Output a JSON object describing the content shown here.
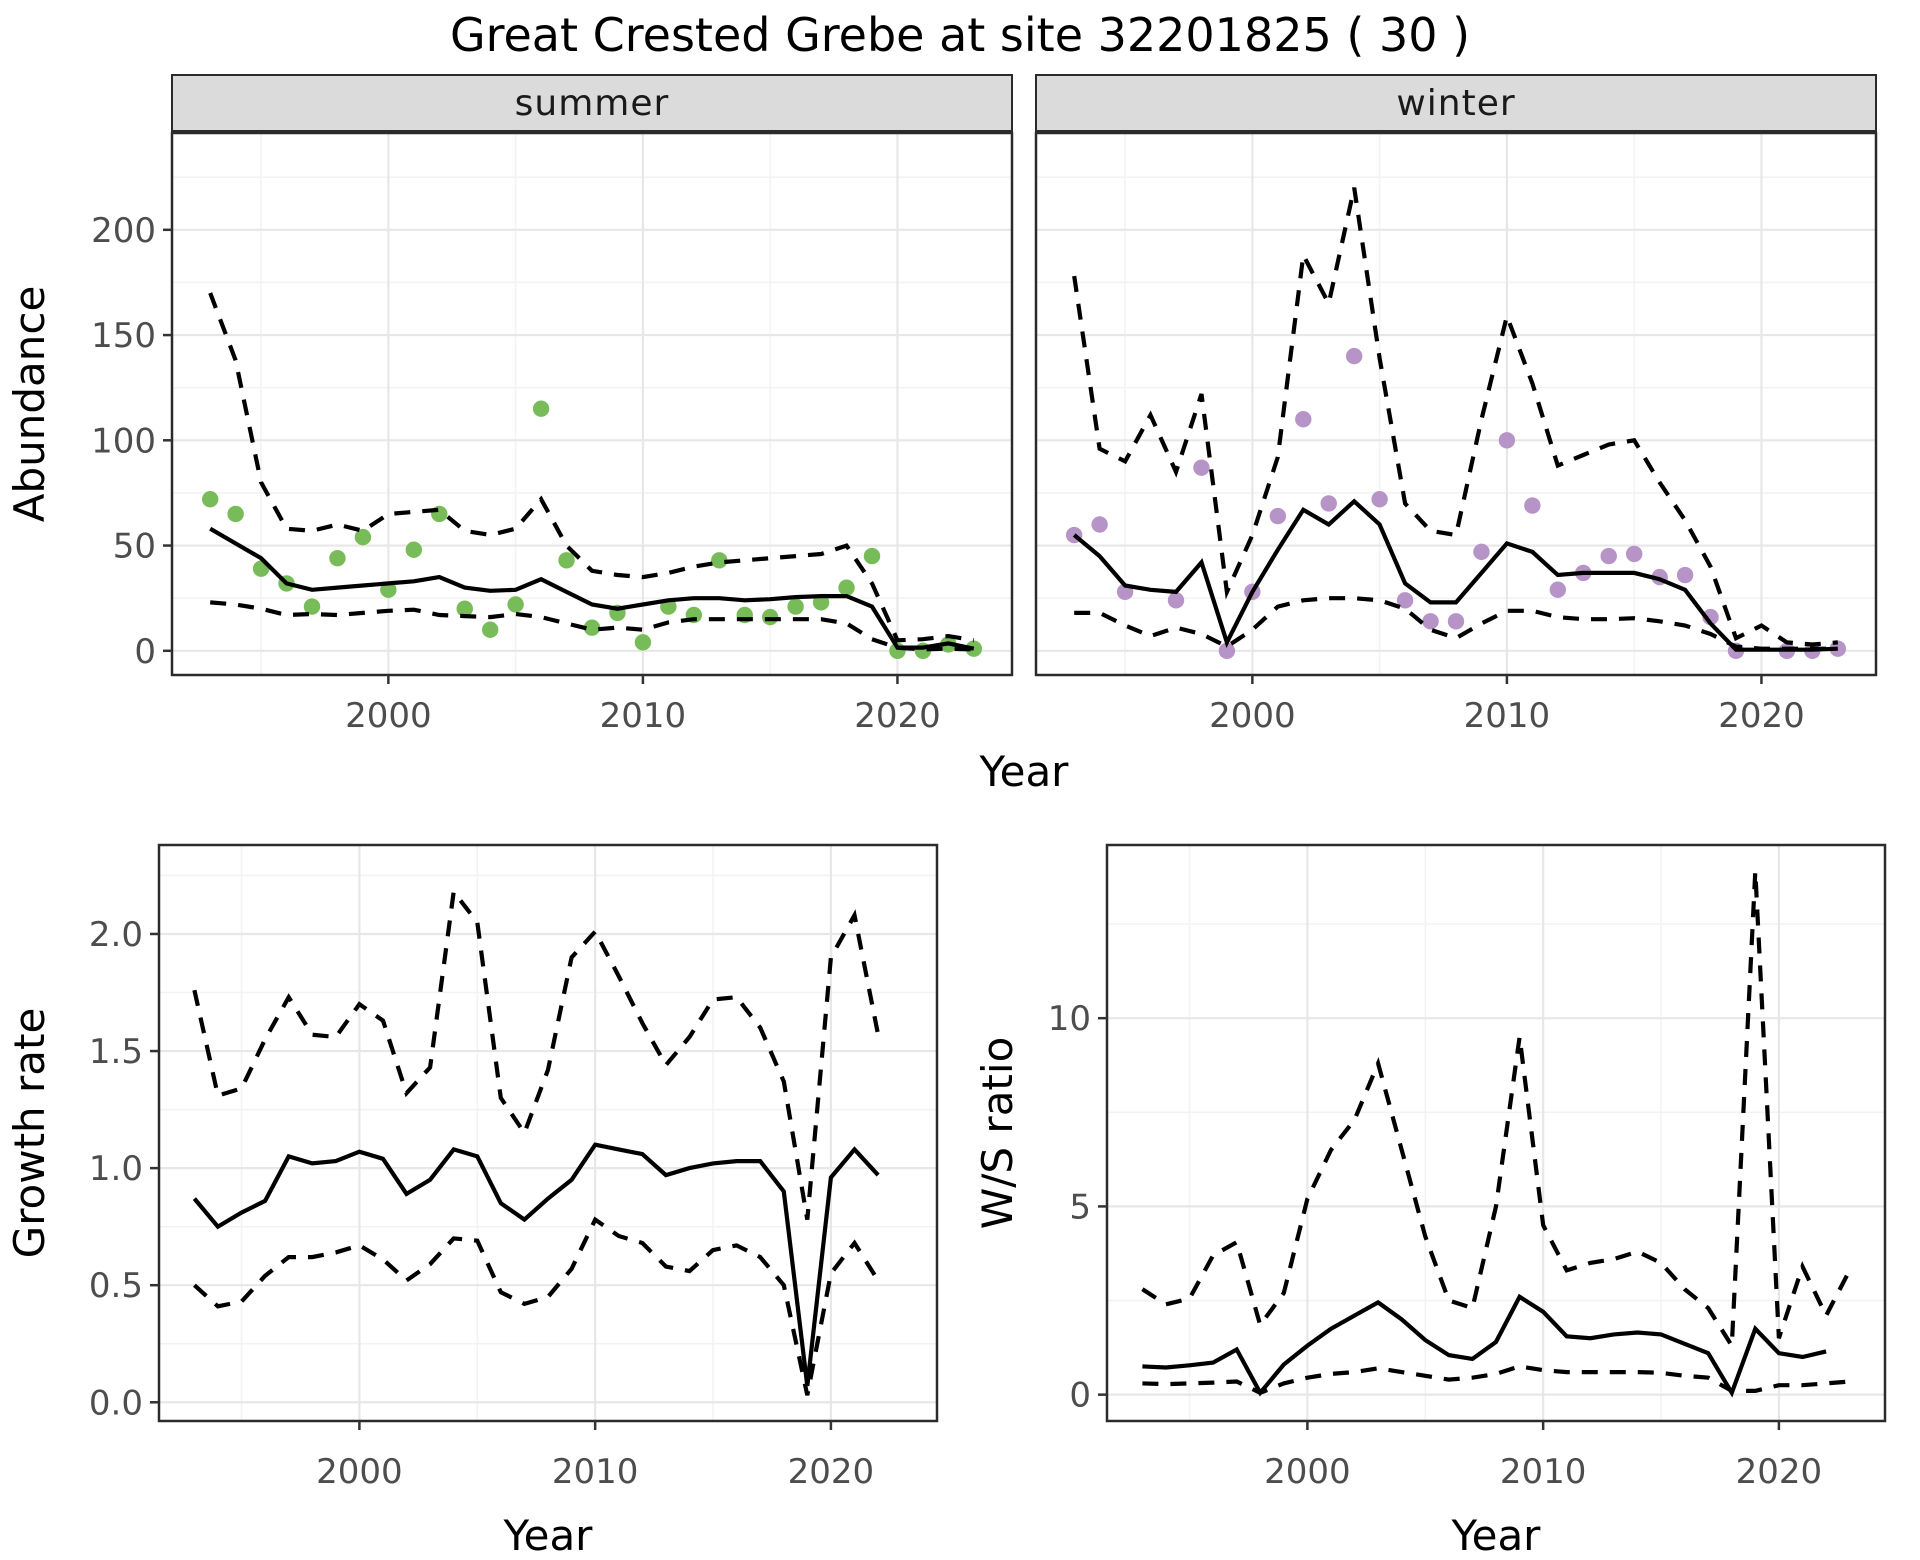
{
  "title": "Great Crested Grebe at site 32201825 ( 30 )",
  "colors": {
    "summer_points": "#78BC5A",
    "winter_points": "#B794C7",
    "line": "#000000",
    "grid_major": "#E7E7E7",
    "grid_minor": "#F3F3F3",
    "strip_bg": "#DBDBDB",
    "panel_border": "#2B2B2B",
    "tick_text": "#4D4D4D"
  },
  "facets": {
    "summer": "summer",
    "winter": "winter"
  },
  "axis_titles": {
    "abundance": "Abundance",
    "year": "Year",
    "growth_rate": "Growth rate",
    "ws_ratio": "W/S ratio"
  },
  "chart_data": [
    {
      "id": "summer",
      "type": "line",
      "title": "summer",
      "xlabel": "Year",
      "ylabel": "Abundance",
      "xlim": [
        1991.5,
        2024.5
      ],
      "ylim": [
        -11.5,
        246
      ],
      "x_ticks": [
        [
          2000,
          "2000"
        ],
        [
          2010,
          "2010"
        ],
        [
          2020,
          "2020"
        ]
      ],
      "x_minor": [
        1995,
        2005,
        2015
      ],
      "y_ticks": [
        [
          0,
          "0"
        ],
        [
          50,
          "50"
        ],
        [
          100,
          "100"
        ],
        [
          150,
          "150"
        ],
        [
          200,
          "200"
        ]
      ],
      "y_minor": [
        25,
        75,
        125,
        175,
        225
      ],
      "grid": true,
      "legend_position": "none",
      "x": [
        1993,
        1994,
        1995,
        1996,
        1997,
        1998,
        1999,
        2000,
        2001,
        2002,
        2003,
        2004,
        2005,
        2006,
        2007,
        2008,
        2009,
        2010,
        2011,
        2012,
        2013,
        2014,
        2015,
        2016,
        2017,
        2018,
        2019,
        2020,
        2021,
        2022,
        2023
      ],
      "series": [
        {
          "name": "observed_counts",
          "style": "points",
          "values": [
            72,
            65,
            39,
            32,
            21,
            44,
            54,
            29,
            48,
            65,
            20,
            10,
            22,
            115,
            43,
            11,
            18,
            4,
            21,
            17,
            43,
            17,
            16,
            21,
            23,
            30,
            45,
            0,
            0,
            3,
            1
          ]
        },
        {
          "name": "model_fit",
          "style": "solid",
          "values": [
            58,
            51,
            44,
            32,
            29,
            30,
            31,
            32,
            33,
            35,
            30,
            28.5,
            29,
            34,
            28,
            22,
            20,
            22,
            24,
            25,
            25,
            24,
            24.5,
            25.5,
            26,
            26,
            21,
            1.5,
            1.5,
            3.5,
            1
          ]
        },
        {
          "name": "upper_ci",
          "style": "dashed",
          "values": [
            170,
            138,
            80,
            58,
            57,
            60,
            57,
            65,
            66,
            67,
            57,
            55,
            58,
            72,
            50,
            38,
            36,
            35,
            37,
            40,
            42,
            43,
            44,
            45,
            46,
            50,
            32,
            5,
            5.5,
            7,
            5
          ]
        },
        {
          "name": "lower_ci",
          "style": "dashed",
          "values": [
            23,
            22,
            20,
            17,
            17.5,
            17,
            18,
            19,
            19.5,
            17,
            16.5,
            16,
            17.5,
            16,
            13,
            10,
            11,
            10,
            13.5,
            15,
            15,
            15,
            15,
            15,
            15,
            13,
            5.5,
            1.4,
            0.7,
            1,
            0.7
          ]
        }
      ]
    },
    {
      "id": "winter",
      "type": "line",
      "title": "winter",
      "xlabel": "Year",
      "ylabel": "Abundance",
      "xlim": [
        1991.5,
        2024.5
      ],
      "ylim": [
        -11.5,
        246
      ],
      "x_ticks": [
        [
          2000,
          "2000"
        ],
        [
          2010,
          "2010"
        ],
        [
          2020,
          "2020"
        ]
      ],
      "x_minor": [
        1995,
        2005,
        2015
      ],
      "y_ticks": [
        [
          0,
          "0"
        ],
        [
          50,
          "50"
        ],
        [
          100,
          "100"
        ],
        [
          150,
          "150"
        ],
        [
          200,
          "200"
        ]
      ],
      "y_minor": [
        25,
        75,
        125,
        175,
        225
      ],
      "grid": true,
      "legend_position": "none",
      "x": [
        1993,
        1994,
        1995,
        1996,
        1997,
        1998,
        1999,
        2000,
        2001,
        2002,
        2003,
        2004,
        2005,
        2006,
        2007,
        2008,
        2009,
        2010,
        2011,
        2012,
        2013,
        2014,
        2015,
        2016,
        2017,
        2018,
        2019,
        2020,
        2021,
        2022,
        2023
      ],
      "series": [
        {
          "name": "observed_counts",
          "style": "points",
          "values": [
            55,
            60,
            28,
            null,
            24,
            87,
            0,
            28,
            64,
            110,
            70,
            140,
            72,
            24,
            14,
            14,
            47,
            100,
            69,
            29,
            37,
            45,
            46,
            35,
            36,
            16,
            0,
            null,
            0,
            0,
            1
          ]
        },
        {
          "name": "model_fit",
          "style": "solid",
          "values": [
            55,
            45,
            31,
            29,
            28,
            42,
            4,
            28,
            48,
            67,
            60,
            71,
            60,
            32,
            23,
            23,
            37,
            51,
            47,
            36,
            37,
            37,
            37,
            34,
            29,
            13,
            0.5,
            0.5,
            0.5,
            0.5,
            1
          ]
        },
        {
          "name": "upper_ci",
          "style": "dashed",
          "values": [
            178,
            96,
            90,
            112,
            85,
            122,
            28,
            55,
            92,
            188,
            165,
            220,
            139,
            70,
            57,
            55,
            110,
            159,
            127,
            88,
            93,
            98,
            100,
            80,
            62,
            40,
            6,
            12,
            4,
            3,
            4
          ]
        },
        {
          "name": "lower_ci",
          "style": "dashed",
          "values": [
            18,
            18,
            12,
            7,
            11,
            8,
            2,
            10,
            21,
            24,
            25,
            25,
            24,
            20,
            10,
            6,
            13,
            19,
            19,
            16,
            15,
            15,
            15.5,
            14,
            12,
            8,
            2,
            1,
            1,
            1,
            1
          ]
        }
      ]
    },
    {
      "id": "growth_rate",
      "type": "line",
      "title": "",
      "xlabel": "Year",
      "ylabel": "Growth rate",
      "xlim": [
        1991.5,
        2024.5
      ],
      "ylim": [
        -0.08,
        2.38
      ],
      "x_ticks": [
        [
          2000,
          "2000"
        ],
        [
          2010,
          "2010"
        ],
        [
          2020,
          "2020"
        ]
      ],
      "x_minor": [
        1995,
        2005,
        2015
      ],
      "y_ticks": [
        [
          0,
          "0.0"
        ],
        [
          0.5,
          "0.5"
        ],
        [
          1,
          "1.0"
        ],
        [
          1.5,
          "1.5"
        ],
        [
          2,
          "2.0"
        ]
      ],
      "y_minor": [
        0.25,
        0.75,
        1.25,
        1.75,
        2.25
      ],
      "grid": true,
      "legend_position": "none",
      "x": [
        1993,
        1994,
        1995,
        1996,
        1997,
        1998,
        1999,
        2000,
        2001,
        2002,
        2003,
        2004,
        2005,
        2006,
        2007,
        2008,
        2009,
        2010,
        2011,
        2012,
        2013,
        2014,
        2015,
        2016,
        2017,
        2018,
        2019,
        2020,
        2021,
        2022
      ],
      "series": [
        {
          "name": "growth_rate_fit",
          "style": "solid",
          "values": [
            0.87,
            0.75,
            0.81,
            0.86,
            1.05,
            1.02,
            1.03,
            1.07,
            1.04,
            0.89,
            0.95,
            1.08,
            1.05,
            0.85,
            0.78,
            0.87,
            0.95,
            1.1,
            1.08,
            1.06,
            0.97,
            1.0,
            1.02,
            1.03,
            1.03,
            0.9,
            0.07,
            0.96,
            1.08,
            0.97
          ]
        },
        {
          "name": "upper_ci",
          "style": "dashed",
          "values": [
            1.76,
            1.31,
            1.34,
            1.55,
            1.73,
            1.57,
            1.56,
            1.7,
            1.63,
            1.32,
            1.43,
            2.18,
            2.05,
            1.3,
            1.15,
            1.42,
            1.9,
            2.01,
            1.82,
            1.62,
            1.44,
            1.56,
            1.72,
            1.73,
            1.6,
            1.37,
            0.78,
            1.9,
            2.08,
            1.57
          ]
        },
        {
          "name": "lower_ci",
          "style": "dashed",
          "values": [
            0.5,
            0.41,
            0.43,
            0.54,
            0.62,
            0.62,
            0.64,
            0.67,
            0.61,
            0.52,
            0.59,
            0.7,
            0.69,
            0.47,
            0.42,
            0.45,
            0.57,
            0.78,
            0.71,
            0.68,
            0.58,
            0.56,
            0.65,
            0.67,
            0.62,
            0.5,
            0.03,
            0.55,
            0.68,
            0.52
          ]
        }
      ]
    },
    {
      "id": "ws_ratio",
      "type": "line",
      "title": "",
      "xlabel": "Year",
      "ylabel": "W/S ratio",
      "xlim": [
        1991.5,
        2024.5
      ],
      "ylim": [
        -0.7,
        14.6
      ],
      "x_ticks": [
        [
          2000,
          "2000"
        ],
        [
          2010,
          "2010"
        ],
        [
          2020,
          "2020"
        ]
      ],
      "x_minor": [
        1995,
        2005,
        2015
      ],
      "y_ticks": [
        [
          0,
          "0"
        ],
        [
          5,
          "5"
        ],
        [
          10,
          "10"
        ]
      ],
      "y_minor": [
        2.5,
        7.5,
        12.5
      ],
      "grid": true,
      "legend_position": "none",
      "x": [
        1993,
        1994,
        1995,
        1996,
        1997,
        1998,
        1999,
        2000,
        2001,
        2002,
        2003,
        2004,
        2005,
        2006,
        2007,
        2008,
        2009,
        2010,
        2011,
        2012,
        2013,
        2014,
        2015,
        2016,
        2017,
        2018,
        2019,
        2020,
        2021,
        2022,
        2023
      ],
      "series": [
        {
          "name": "ws_ratio_fit",
          "style": "solid",
          "values": [
            0.75,
            0.72,
            0.78,
            0.85,
            1.2,
            0.05,
            0.8,
            1.3,
            1.75,
            2.1,
            2.45,
            2.0,
            1.45,
            1.05,
            0.95,
            1.4,
            2.6,
            2.2,
            1.55,
            1.5,
            1.6,
            1.65,
            1.6,
            1.35,
            1.1,
            0.05,
            1.75,
            1.1,
            1.0,
            1.15,
            null
          ]
        },
        {
          "name": "upper_ci",
          "style": "dashed",
          "values": [
            2.8,
            2.4,
            2.55,
            3.7,
            4.05,
            1.85,
            2.7,
            5.2,
            6.5,
            7.3,
            8.8,
            6.5,
            4.2,
            2.5,
            2.3,
            5.0,
            9.5,
            4.5,
            3.3,
            3.5,
            3.6,
            3.8,
            3.5,
            2.8,
            2.3,
            1.3,
            13.9,
            1.5,
            3.4,
            2.1,
            3.3
          ]
        },
        {
          "name": "lower_ci",
          "style": "dashed",
          "values": [
            0.3,
            0.28,
            0.3,
            0.32,
            0.35,
            0.05,
            0.3,
            0.45,
            0.55,
            0.6,
            0.7,
            0.6,
            0.5,
            0.4,
            0.45,
            0.55,
            0.75,
            0.65,
            0.6,
            0.6,
            0.6,
            0.6,
            0.58,
            0.5,
            0.45,
            0.1,
            0.1,
            0.25,
            0.25,
            0.3,
            0.35
          ]
        }
      ]
    }
  ]
}
